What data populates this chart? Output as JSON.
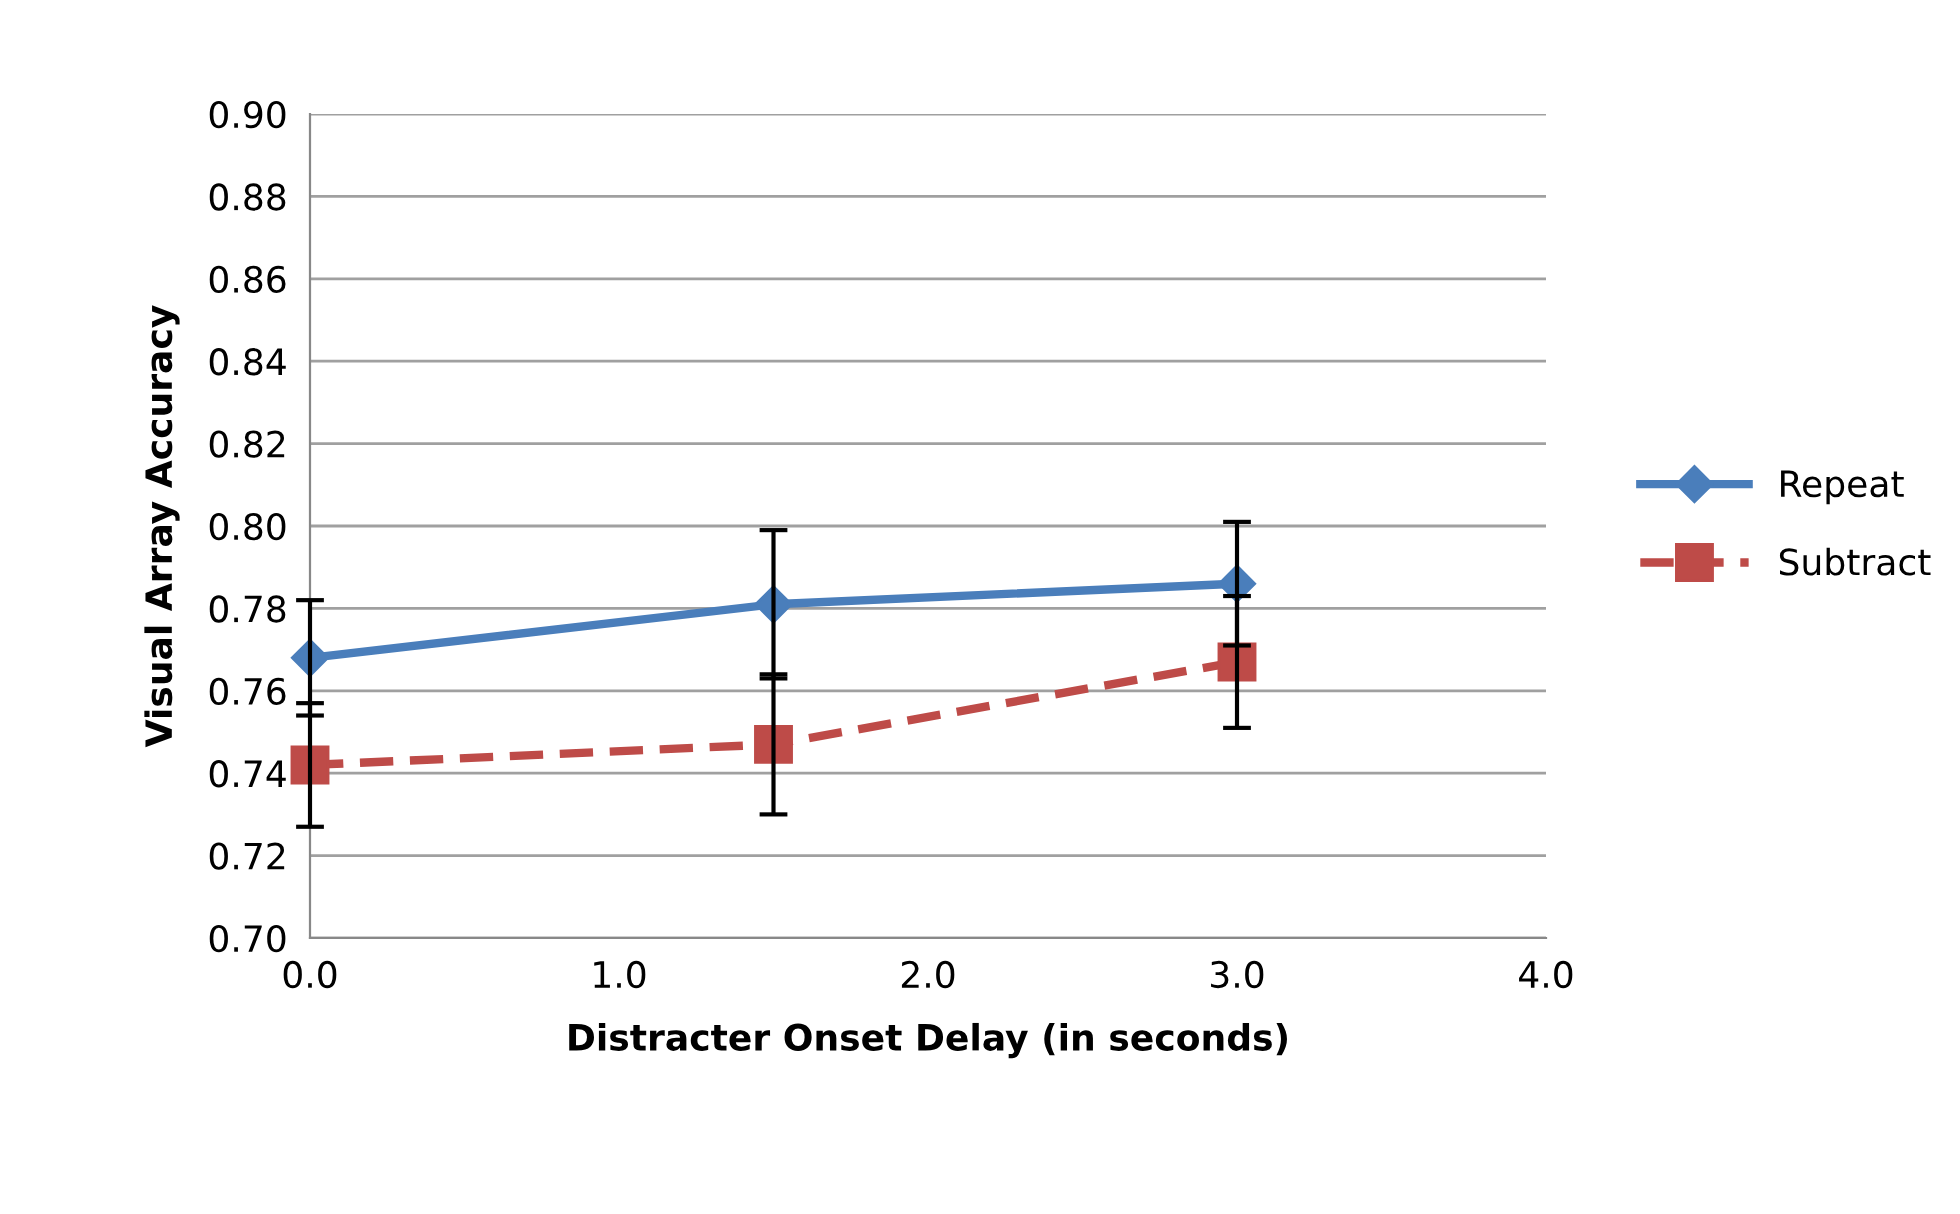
{
  "chart_data": {
    "type": "line",
    "xlabel": "Distracter Onset Delay (in seconds)",
    "ylabel": "Visual Array Accuracy",
    "x": [
      0,
      1.5,
      3
    ],
    "series": [
      {
        "name": "Repeat",
        "color": "#4a7ebb",
        "values": [
          0.768,
          0.781,
          0.786
        ],
        "errors": [
          0.014,
          0.018,
          0.015
        ],
        "marker": "diamond",
        "line_style": "solid"
      },
      {
        "name": "Subtract",
        "color": "#be4b48",
        "values": [
          0.742,
          0.747,
          0.767
        ],
        "errors": [
          0.015,
          0.017,
          0.016
        ],
        "marker": "square",
        "line_style": "dashed"
      }
    ],
    "xlim": [
      0,
      4
    ],
    "xticks": [
      {
        "value": 0,
        "label": "0.0"
      },
      {
        "value": 1,
        "label": "1.0"
      },
      {
        "value": 2,
        "label": "2.0"
      },
      {
        "value": 3,
        "label": "3.0"
      },
      {
        "value": 4,
        "label": "4.0"
      }
    ],
    "ylim": [
      0.7,
      0.9
    ],
    "yticks": [
      {
        "value": 0.7,
        "label": "0.70"
      },
      {
        "value": 0.72,
        "label": "0.72"
      },
      {
        "value": 0.74,
        "label": "0.74"
      },
      {
        "value": 0.76,
        "label": "0.76"
      },
      {
        "value": 0.78,
        "label": "0.78"
      },
      {
        "value": 0.8,
        "label": "0.80"
      },
      {
        "value": 0.82,
        "label": "0.82"
      },
      {
        "value": 0.84,
        "label": "0.84"
      },
      {
        "value": 0.86,
        "label": "0.86"
      },
      {
        "value": 0.88,
        "label": "0.88"
      },
      {
        "value": 0.9,
        "label": "0.90"
      }
    ],
    "grid": "y",
    "legend": "right"
  }
}
